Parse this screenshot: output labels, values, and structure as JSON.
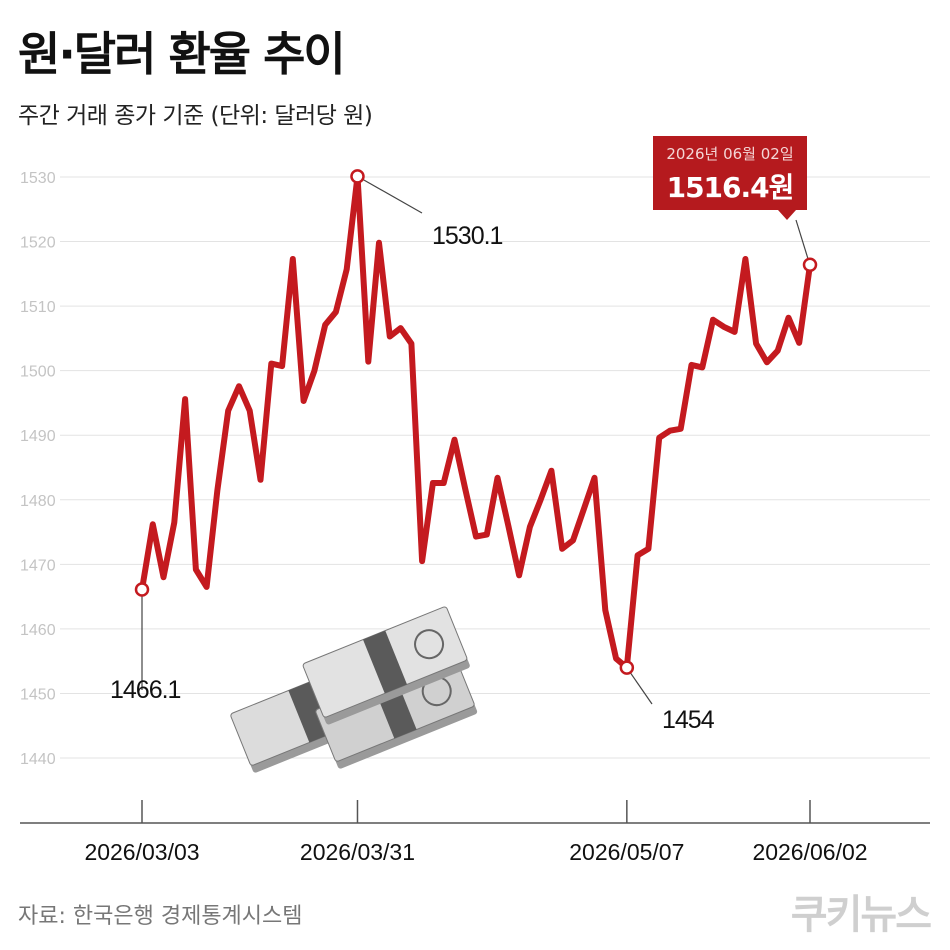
{
  "title": "원·달러 환율 추이",
  "subtitle": "주간 거래 종가 기준 (단위: 달러당 원)",
  "source": "자료: 한국은행 경제통계시스템",
  "logo": "쿠키뉴스",
  "callout": {
    "date": "2026년 06월 02일",
    "value": "1516.4원"
  },
  "colors": {
    "line": "#c41a1f",
    "callout_bg": "#b51a1e",
    "grid": "#e3e3e3",
    "tick_text": "#c4c4c4"
  },
  "chart_data": {
    "type": "line",
    "title": "원·달러 환율 추이",
    "subtitle": "주간 거래 종가 기준 (단위: 달러당 원)",
    "y_ticks": [
      1440,
      1450,
      1460,
      1470,
      1480,
      1490,
      1500,
      1510,
      1520,
      1530
    ],
    "ylim": [
      1440,
      1530
    ],
    "grid": true,
    "x_ticks": [
      {
        "index": 0,
        "label": "2026/03/03"
      },
      {
        "index": 20,
        "label": "2026/03/31"
      },
      {
        "index": 45,
        "label": "2026/05/07"
      },
      {
        "index": 62,
        "label": "2026/06/02"
      }
    ],
    "series": [
      {
        "values": [
          1466.1,
          1476.2,
          1468.0,
          1476.5,
          1495.6,
          1469.2,
          1466.5,
          1481.5,
          1493.8,
          1497.6,
          1493.8,
          1483.1,
          1501.1,
          1500.7,
          1517.3,
          1495.3,
          1500.0,
          1507.1,
          1509.1,
          1515.7,
          1530.1,
          1501.4,
          1519.8,
          1505.3,
          1506.6,
          1504.2,
          1470.5,
          1482.6,
          1482.6,
          1489.3,
          1481.7,
          1474.3,
          1474.6,
          1483.4,
          1476.0,
          1468.3,
          1475.8,
          1480.0,
          1484.5,
          1472.4,
          1473.7,
          1478.5,
          1483.4,
          1462.9,
          1455.4,
          1454.0,
          1471.4,
          1472.4,
          1489.6,
          1490.7,
          1491.0,
          1500.9,
          1500.5,
          1507.9,
          1506.8,
          1506.0,
          1517.3,
          1504.2,
          1501.3,
          1503.1,
          1508.2,
          1504.3,
          1516.4
        ]
      }
    ],
    "annotations": [
      {
        "index": 0,
        "label": "1466.1"
      },
      {
        "index": 20,
        "label": "1530.1"
      },
      {
        "index": 45,
        "label": "1454"
      },
      {
        "index": 62,
        "label": "1516.4원"
      }
    ]
  }
}
